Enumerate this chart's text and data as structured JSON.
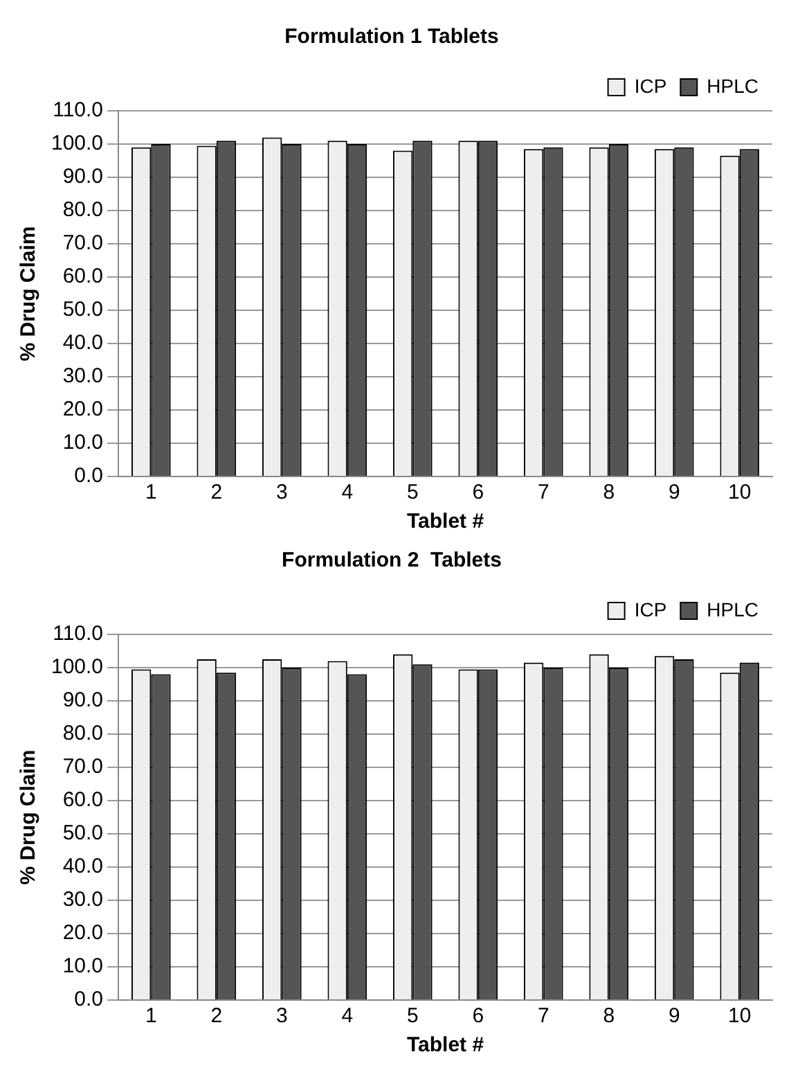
{
  "chart_data": [
    {
      "type": "bar",
      "title": "Formulation 1 Tablets",
      "xlabel": "Tablet #",
      "ylabel": "% Drug Claim",
      "categories": [
        "1",
        "2",
        "3",
        "4",
        "5",
        "6",
        "7",
        "8",
        "9",
        "10"
      ],
      "series": [
        {
          "name": "ICP",
          "color": "#eeeeee",
          "values": [
            99,
            99.5,
            102,
            101,
            98,
            101,
            98.5,
            99,
            98.5,
            96.5
          ]
        },
        {
          "name": "HPLC",
          "color": "#555555",
          "values": [
            100,
            101,
            100,
            100,
            101,
            101,
            99,
            100,
            99,
            98.5
          ]
        }
      ],
      "ylim": [
        0,
        110
      ],
      "yticks": [
        {
          "value": 0,
          "label": "0.0"
        },
        {
          "value": 10,
          "label": "10.0"
        },
        {
          "value": 20,
          "label": "20.0"
        },
        {
          "value": 30,
          "label": "30.0"
        },
        {
          "value": 40,
          "label": "40.0"
        },
        {
          "value": 50,
          "label": "50.0"
        },
        {
          "value": 60,
          "label": "60.0"
        },
        {
          "value": 70,
          "label": "70.0"
        },
        {
          "value": 80,
          "label": "80.0"
        },
        {
          "value": 90,
          "label": "90.0"
        },
        {
          "value": 100,
          "label": "100.0"
        },
        {
          "value": 110,
          "label": "110.0"
        }
      ],
      "grid": "y",
      "legend": "top right"
    },
    {
      "type": "bar",
      "title": "Formulation 2  Tablets",
      "xlabel": "Tablet #",
      "ylabel": "% Drug Claim",
      "categories": [
        "1",
        "2",
        "3",
        "4",
        "5",
        "6",
        "7",
        "8",
        "9",
        "10"
      ],
      "series": [
        {
          "name": "ICP",
          "color": "#eeeeee",
          "values": [
            99.5,
            102.5,
            102.5,
            102,
            104,
            99.5,
            101.5,
            104,
            103.5,
            98.5
          ]
        },
        {
          "name": "HPLC",
          "color": "#555555",
          "values": [
            98,
            98.5,
            100,
            98,
            101,
            99.5,
            100,
            100,
            102.5,
            101.5
          ]
        }
      ],
      "ylim": [
        0,
        110
      ],
      "yticks": [
        {
          "value": 0,
          "label": "0.0"
        },
        {
          "value": 10,
          "label": "10.0"
        },
        {
          "value": 20,
          "label": "20.0"
        },
        {
          "value": 30,
          "label": "30.0"
        },
        {
          "value": 40,
          "label": "40.0"
        },
        {
          "value": 50,
          "label": "50.0"
        },
        {
          "value": 60,
          "label": "60.0"
        },
        {
          "value": 70,
          "label": "70.0"
        },
        {
          "value": 80,
          "label": "80.0"
        },
        {
          "value": 90,
          "label": "90.0"
        },
        {
          "value": 100,
          "label": "100.0"
        },
        {
          "value": 110,
          "label": "110.0"
        }
      ],
      "grid": "y",
      "legend": "top right"
    }
  ]
}
